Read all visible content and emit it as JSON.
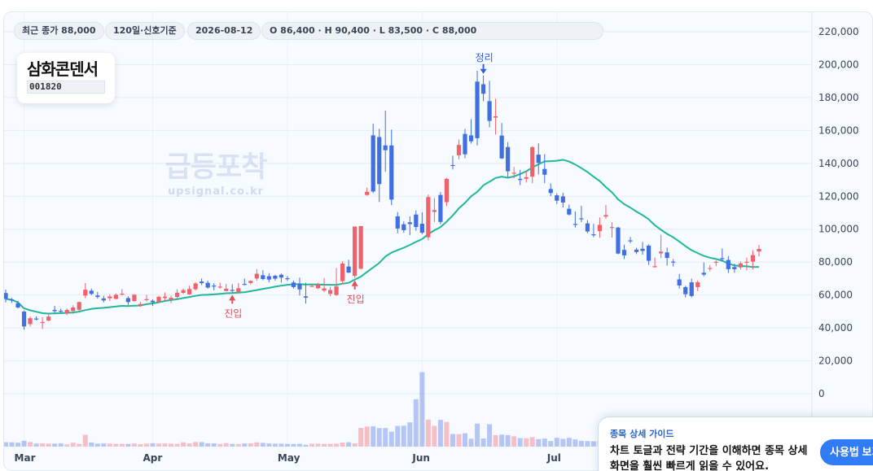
{
  "header": {
    "recent_close": "최근 종가 88,000",
    "period": "120일·신호기준",
    "date": "2026-08-12",
    "ohlc": "O 86,400 · H 90,400 · L 83,500 · C 88,000"
  },
  "stock": {
    "name": "삼화콘덴서",
    "code": "001820"
  },
  "watermark": {
    "title": "급등포착",
    "url": "upsignal.co.kr"
  },
  "guide": {
    "title": "종목 상세 가이드",
    "body": "차트 토글과 전략 기간을 이해하면 종목 상세 화면을 훨씬 빠르게 읽을 수 있어요.",
    "button": "사용법 보기"
  },
  "colors": {
    "up": "#f0616a",
    "down": "#3f6fe0",
    "ma": "#20b89a",
    "signal_entry": "#e0505a",
    "signal_exit": "#3060d8"
  },
  "chart_data": {
    "type": "candlestick",
    "price_axis": {
      "min": 0,
      "max": 220000,
      "ticks": [
        "220,000",
        "200,000",
        "180,000",
        "160,000",
        "140,000",
        "120,000",
        "100,000",
        "80,000",
        "60,000",
        "40,000",
        "20,000",
        "0"
      ]
    },
    "x_labels": [
      "Mar",
      "Apr",
      "May",
      "Jun",
      "Jul"
    ],
    "x_label_index": [
      3,
      24,
      46,
      68,
      90
    ],
    "ohlc": [
      [
        61200,
        63300,
        55500,
        57600
      ],
      [
        57200,
        58100,
        55200,
        56600
      ],
      [
        55000,
        56400,
        51800,
        52400
      ],
      [
        49900,
        50600,
        38900,
        40900
      ],
      [
        42300,
        47000,
        40800,
        45900
      ],
      [
        45700,
        47000,
        44500,
        45600
      ],
      [
        43200,
        46500,
        39300,
        43600
      ],
      [
        44400,
        48900,
        44100,
        46900
      ],
      [
        50900,
        53400,
        49200,
        50200
      ],
      [
        50400,
        51700,
        49100,
        49800
      ],
      [
        48900,
        51700,
        47800,
        50900
      ],
      [
        50300,
        53700,
        48600,
        52400
      ],
      [
        51000,
        56000,
        50100,
        55700
      ],
      [
        59700,
        67300,
        58100,
        63200
      ],
      [
        62600,
        63900,
        59900,
        60700
      ],
      [
        59700,
        61900,
        57800,
        58800
      ],
      [
        57900,
        59500,
        55500,
        56700
      ],
      [
        58000,
        60400,
        56400,
        59100
      ],
      [
        57700,
        60900,
        57300,
        60100
      ],
      [
        60500,
        63600,
        59700,
        60800
      ],
      [
        58100,
        59200,
        53800,
        55700
      ],
      [
        56300,
        60400,
        55900,
        60200
      ],
      [
        53700,
        55800,
        52800,
        54500
      ],
      [
        57000,
        60100,
        56100,
        57500
      ],
      [
        56500,
        57400,
        53300,
        55600
      ],
      [
        55800,
        59500,
        55300,
        58900
      ],
      [
        58200,
        61600,
        56300,
        59000
      ],
      [
        57300,
        59600,
        55000,
        58300
      ],
      [
        58800,
        63500,
        57700,
        61400
      ],
      [
        61300,
        63900,
        60700,
        63000
      ],
      [
        60400,
        65600,
        60100,
        63600
      ],
      [
        63500,
        67800,
        62800,
        67000
      ],
      [
        68200,
        70000,
        66000,
        67200
      ],
      [
        67400,
        68600,
        63900,
        64500
      ],
      [
        65700,
        67100,
        62900,
        65500
      ],
      [
        64500,
        67500,
        63900,
        65100
      ],
      [
        62400,
        66700,
        62300,
        63800
      ],
      [
        63100,
        66600,
        61600,
        62800
      ],
      [
        61900,
        67200,
        61200,
        64100
      ],
      [
        66700,
        70000,
        65900,
        66300
      ],
      [
        67300,
        68900,
        66400,
        68600
      ],
      [
        70000,
        75700,
        68700,
        72900
      ],
      [
        72000,
        75000,
        68900,
        69700
      ],
      [
        71400,
        73300,
        67800,
        69400
      ],
      [
        71700,
        72300,
        68700,
        69900
      ],
      [
        72300,
        73100,
        67600,
        70600
      ],
      [
        70200,
        71500,
        68500,
        69800
      ],
      [
        67600,
        68700,
        63900,
        64800
      ],
      [
        66800,
        70600,
        59700,
        63400
      ],
      [
        59200,
        67400,
        54800,
        58400
      ],
      [
        65200,
        66200,
        64900,
        65500
      ],
      [
        64100,
        67300,
        63700,
        66100
      ],
      [
        62700,
        70300,
        61700,
        64000
      ],
      [
        60700,
        64900,
        59200,
        63000
      ],
      [
        60000,
        76400,
        59500,
        65200
      ],
      [
        68400,
        80400,
        66500,
        79100
      ],
      [
        77300,
        81400,
        73400,
        73600
      ],
      [
        71600,
        101600,
        70300,
        101600
      ],
      [
        76000,
        101700,
        75500,
        101900
      ],
      [
        120800,
        125300,
        120300,
        122700
      ],
      [
        157000,
        164100,
        121900,
        122900
      ],
      [
        156000,
        161000,
        116500,
        127400
      ],
      [
        150900,
        172000,
        134900,
        148000
      ],
      [
        150900,
        160500,
        114600,
        118000
      ],
      [
        107800,
        110400,
        97500,
        100400
      ],
      [
        103000,
        104700,
        97800,
        99400
      ],
      [
        104200,
        107800,
        96400,
        103100
      ],
      [
        108900,
        111400,
        99100,
        101300
      ],
      [
        103300,
        110300,
        96900,
        97900
      ],
      [
        95100,
        121100,
        93200,
        119500
      ],
      [
        110500,
        119000,
        104300,
        111600
      ],
      [
        120800,
        122500,
        103100,
        104400
      ],
      [
        116400,
        131200,
        114000,
        130600
      ],
      [
        139000,
        144700,
        136300,
        138500
      ],
      [
        144900,
        154500,
        142400,
        151200
      ],
      [
        157900,
        160900,
        143100,
        145500
      ],
      [
        157000,
        166900,
        152000,
        153400
      ],
      [
        189700,
        196300,
        150900,
        155300
      ],
      [
        188100,
        193400,
        177700,
        182300
      ],
      [
        177800,
        190200,
        161900,
        165800
      ],
      [
        167800,
        179200,
        157500,
        168600
      ],
      [
        156900,
        164500,
        142600,
        143000
      ],
      [
        149900,
        152900,
        131600,
        135200
      ],
      [
        134000,
        137800,
        131000,
        134300
      ],
      [
        130600,
        136100,
        126800,
        129900
      ],
      [
        130600,
        135500,
        128300,
        131600
      ],
      [
        131900,
        150400,
        127900,
        149900
      ],
      [
        145300,
        152200,
        133200,
        140300
      ],
      [
        136600,
        145600,
        128000,
        133100
      ],
      [
        124400,
        127800,
        120100,
        122000
      ],
      [
        120600,
        121800,
        115300,
        117300
      ],
      [
        119900,
        122100,
        113100,
        116200
      ],
      [
        112400,
        114900,
        108300,
        108900
      ],
      [
        103200,
        110800,
        101000,
        102800
      ],
      [
        106600,
        114200,
        104300,
        106300
      ],
      [
        103500,
        105500,
        97500,
        98600
      ],
      [
        96900,
        103200,
        95100,
        96500
      ],
      [
        98800,
        107100,
        94800,
        102600
      ],
      [
        107600,
        114700,
        106300,
        108600
      ],
      [
        101300,
        104200,
        94900,
        101300
      ],
      [
        101000,
        101400,
        84700,
        85200
      ],
      [
        87400,
        90600,
        81800,
        84100
      ],
      [
        93200,
        95300,
        91500,
        92600
      ],
      [
        87600,
        88700,
        84900,
        86100
      ],
      [
        88100,
        92200,
        84500,
        86800
      ],
      [
        90000,
        90800,
        78300,
        80800
      ],
      [
        76900,
        82800,
        76600,
        77500
      ],
      [
        85300,
        96600,
        82400,
        86400
      ],
      [
        85900,
        88800,
        77800,
        82500
      ],
      [
        80300,
        81800,
        77300,
        79900
      ],
      [
        69500,
        72800,
        63900,
        65800
      ],
      [
        64800,
        65600,
        58600,
        60500
      ],
      [
        67700,
        69900,
        58500,
        59400
      ],
      [
        64800,
        68900,
        62400,
        67800
      ],
      [
        73500,
        79800,
        71400,
        72400
      ],
      [
        75900,
        78200,
        74400,
        76400
      ],
      [
        79800,
        81000,
        77500,
        80200
      ],
      [
        82400,
        88300,
        80400,
        82100
      ],
      [
        81300,
        83700,
        73400,
        75700
      ],
      [
        77000,
        79000,
        73500,
        75700
      ],
      [
        76800,
        80400,
        75500,
        79200
      ],
      [
        79800,
        82700,
        74900,
        80200
      ],
      [
        80300,
        87300,
        75500,
        84300
      ],
      [
        86400,
        90400,
        83500,
        88000
      ]
    ],
    "volume_scale_max": 110000,
    "volume": [
      5400,
      5300,
      4800,
      7100,
      5600,
      3800,
      3900,
      3700,
      3600,
      3900,
      2700,
      4900,
      3300,
      14500,
      5100,
      3700,
      3900,
      3600,
      3400,
      3400,
      3300,
      3800,
      2900,
      3600,
      4100,
      3800,
      3800,
      3600,
      3400,
      5300,
      4000,
      5700,
      5600,
      4000,
      4000,
      3300,
      4200,
      3400,
      3300,
      3900,
      3900,
      5300,
      4600,
      3900,
      3600,
      3600,
      3300,
      3200,
      3400,
      2300,
      3500,
      3600,
      3300,
      3400,
      3600,
      5000,
      5400,
      3900,
      23000,
      24600,
      24900,
      22700,
      22800,
      18400,
      25400,
      25700,
      29800,
      58200,
      91500,
      33200,
      25500,
      32800,
      30400,
      15500,
      15200,
      16400,
      9700,
      28200,
      10000,
      27500,
      14100,
      14700,
      14100,
      12600,
      10400,
      10200,
      11700,
      9200,
      9800,
      6800,
      10800,
      9500,
      10700,
      8900,
      7100,
      6800,
      6500,
      7600,
      8000,
      4800,
      5800,
      5200,
      4000,
      4700,
      5900,
      4300,
      4400,
      4600,
      3900,
      4200,
      3200,
      3400,
      3300,
      3600,
      3500,
      3400,
      3600,
      3700,
      3900,
      4600,
      6100
    ]
  }
}
